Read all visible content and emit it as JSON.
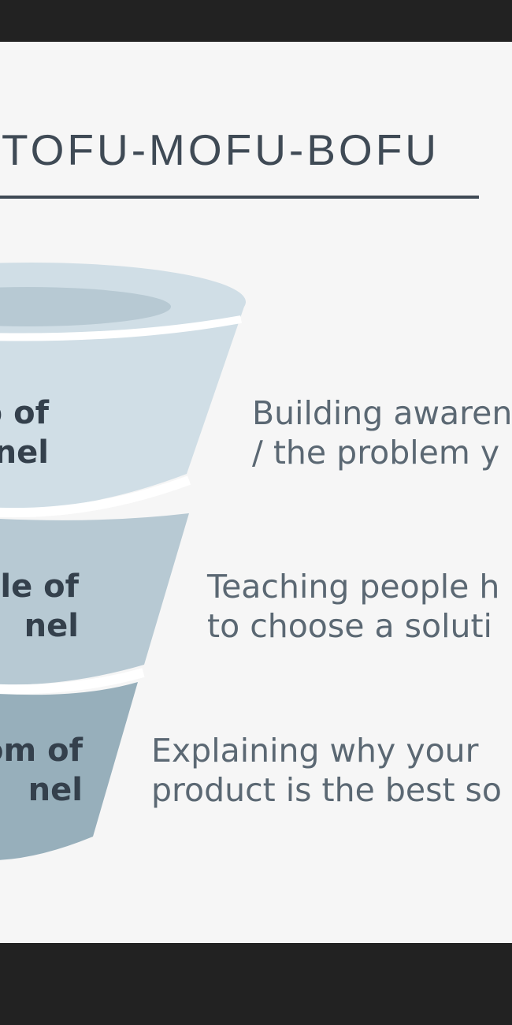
{
  "title": "TOFU-MOFU-BOFU",
  "stages": [
    {
      "label_line1": "p of",
      "label_line2": "nel",
      "desc_line1": "Building awaren",
      "desc_line2": "/ the problem y",
      "color": "#d0dee6"
    },
    {
      "label_line1": "lle of",
      "label_line2": "nel",
      "desc_line1": "Teaching people h",
      "desc_line2": "to choose a soluti",
      "color": "#b7c9d3"
    },
    {
      "label_line1": "om of",
      "label_line2": "nel",
      "desc_line1": "Explaining why your",
      "desc_line2": "product is the best so",
      "color": "#97afbb"
    }
  ],
  "colors": {
    "background": "#f6f6f6",
    "frame": "#222222",
    "title": "#3f4a55",
    "rim_inner": "#b7c9d3"
  }
}
